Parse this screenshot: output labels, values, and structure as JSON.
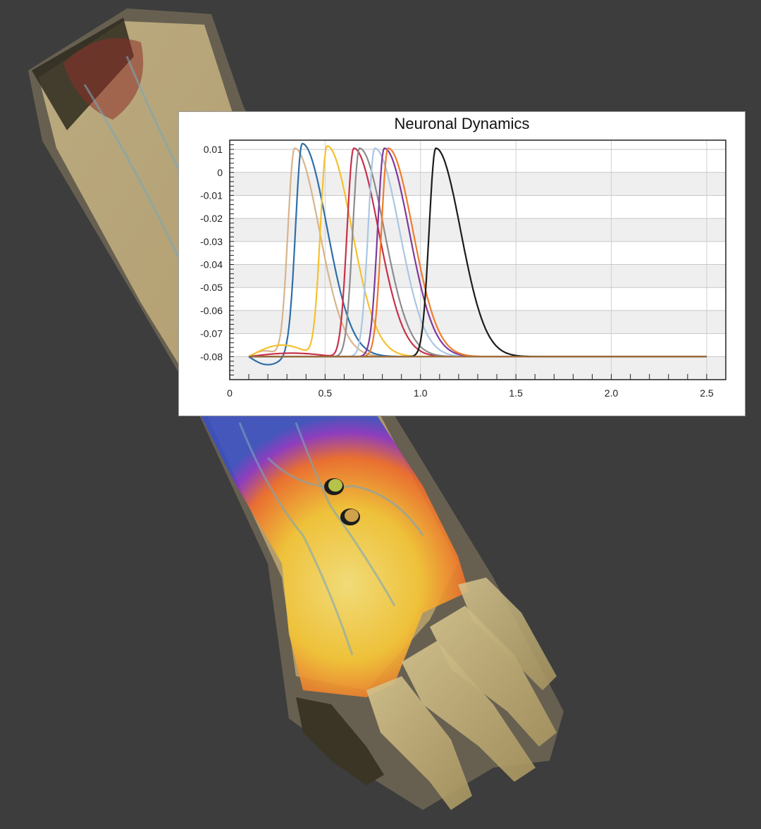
{
  "viewer": {
    "background": "#3d3d3d",
    "model": "arm-hand-3d-model",
    "electrodes": [
      "electrode-1",
      "electrode-2"
    ],
    "colors": {
      "skin": "#c9b787",
      "field_hot": "#f5c534",
      "field_mid": "#ef6a2a",
      "field_low": "#8a33c6",
      "field_min": "#3a4fc4"
    }
  },
  "chart_data": {
    "type": "line",
    "title": "Neuronal Dynamics",
    "xlabel": "",
    "ylabel": "",
    "xlim": [
      0,
      2.6
    ],
    "ylim": [
      -0.09,
      0.014
    ],
    "x_ticks": [
      "0",
      "0.5",
      "1.0",
      "1.5",
      "2.0",
      "2.5"
    ],
    "y_ticks": [
      "0.01",
      "0",
      "-0.01",
      "-0.02",
      "-0.03",
      "-0.04",
      "-0.05",
      "-0.06",
      "-0.07",
      "-0.08"
    ],
    "grid": "both, alternating light gray horizontal bands",
    "legend": "none",
    "baseline": -0.08,
    "x_end": 2.5,
    "series": [
      {
        "color": "#d8b48c",
        "peak_x": 0.34,
        "peak_y": 0.0105,
        "dip_y": -0.0775,
        "dip_start": 0.1,
        "dip_end": 0.27
      },
      {
        "color": "#2f6ea8",
        "peak_x": 0.38,
        "peak_y": 0.0125,
        "dip_y": -0.0835,
        "dip_start": 0.1,
        "dip_end": 0.3
      },
      {
        "color": "#f4c12f",
        "peak_x": 0.51,
        "peak_y": 0.0115,
        "dip_y": -0.075,
        "dip_start": 0.1,
        "dip_end": 0.45
      },
      {
        "color": "#c8314a",
        "peak_x": 0.65,
        "peak_y": 0.0105,
        "dip_y": -0.0785,
        "dip_start": 0.1,
        "dip_end": 0.55
      },
      {
        "color": "#8c8c8c",
        "peak_x": 0.68,
        "peak_y": 0.0105,
        "dip_y": -0.08,
        "dip_start": 0.6,
        "dip_end": 0.6
      },
      {
        "color": "#abc6e4",
        "peak_x": 0.76,
        "peak_y": 0.0105,
        "dip_y": -0.08,
        "dip_start": 0.7,
        "dip_end": 0.7
      },
      {
        "color": "#7e3a9e",
        "peak_x": 0.81,
        "peak_y": 0.0105,
        "dip_y": -0.08,
        "dip_start": 0.75,
        "dip_end": 0.75
      },
      {
        "color": "#ef7d2a",
        "peak_x": 0.83,
        "peak_y": 0.0105,
        "dip_y": -0.08,
        "dip_start": 0.78,
        "dip_end": 0.78
      },
      {
        "color": "#1c1c1c",
        "peak_x": 1.08,
        "peak_y": 0.0105,
        "dip_y": -0.08,
        "dip_start": 1.0,
        "dip_end": 1.0
      },
      {
        "color": "#9e6e3c",
        "peak_x": -1,
        "peak_y": -0.08,
        "dip_y": -0.08,
        "dip_start": 0,
        "dip_end": 0
      }
    ]
  }
}
